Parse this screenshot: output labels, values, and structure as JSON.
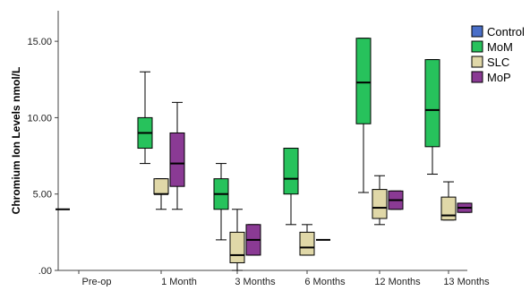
{
  "chart_data": {
    "type": "box",
    "title": "",
    "xlabel": "",
    "ylabel": "Chromium Ion Levels nmol/L",
    "ylim": [
      0,
      17
    ],
    "y_ticks": [
      {
        "value": 0,
        "label": ".00"
      },
      {
        "value": 5,
        "label": "5.00"
      },
      {
        "value": 10,
        "label": "10.00"
      },
      {
        "value": 15,
        "label": "15.00"
      }
    ],
    "categories": [
      "Pre-op",
      "1 Month",
      "3 Months",
      "6 Months",
      "12 Months",
      "13 Months"
    ],
    "legend_position": "top-right",
    "series": [
      {
        "name": "Control",
        "color": "#4a6fc8",
        "boxes": [
          null,
          null,
          null,
          null,
          null,
          null
        ]
      },
      {
        "name": "MoM",
        "color": "#27c25c",
        "boxes": [
          {
            "min": 4,
            "q1": 4,
            "median": 4,
            "q3": 4,
            "max": 4
          },
          {
            "min": 7,
            "q1": 8,
            "median": 9,
            "q3": 10,
            "max": 13
          },
          {
            "min": 2,
            "q1": 4,
            "median": 5,
            "q3": 6,
            "max": 7
          },
          {
            "min": 3,
            "q1": 5,
            "median": 6,
            "q3": 8,
            "max": 8
          },
          {
            "min": 5.1,
            "q1": 9.6,
            "median": 12.3,
            "q3": 15.2,
            "max": 15.2
          },
          {
            "min": 6.3,
            "q1": 8.1,
            "median": 10.5,
            "q3": 13.8,
            "max": 13.8
          }
        ]
      },
      {
        "name": "SLC",
        "color": "#e0d8a8",
        "boxes": [
          null,
          {
            "min": 4,
            "q1": 5,
            "median": 5,
            "q3": 6,
            "max": 6
          },
          {
            "min": 0,
            "q1": 0.5,
            "median": 1,
            "q3": 2.5,
            "max": 4
          },
          {
            "min": 1,
            "q1": 1,
            "median": 1.5,
            "q3": 2.5,
            "max": 3
          },
          {
            "min": 3,
            "q1": 3.4,
            "median": 4.1,
            "q3": 5.3,
            "max": 6.2
          },
          {
            "min": 3.3,
            "q1": 3.3,
            "median": 3.6,
            "q3": 4.8,
            "max": 5.8
          }
        ]
      },
      {
        "name": "MoP",
        "color": "#8a3a94",
        "boxes": [
          null,
          {
            "min": 4,
            "q1": 5.5,
            "median": 7,
            "q3": 9,
            "max": 11
          },
          {
            "min": 1,
            "q1": 1,
            "median": 2,
            "q3": 3,
            "max": 3
          },
          {
            "min": 2,
            "q1": 2,
            "median": 2,
            "q3": 2,
            "max": 2
          },
          {
            "min": 4,
            "q1": 4,
            "median": 4.6,
            "q3": 5.2,
            "max": 5.2
          },
          {
            "min": 3.8,
            "q1": 3.8,
            "median": 4.1,
            "q3": 4.4,
            "max": 4.4
          }
        ]
      }
    ]
  }
}
